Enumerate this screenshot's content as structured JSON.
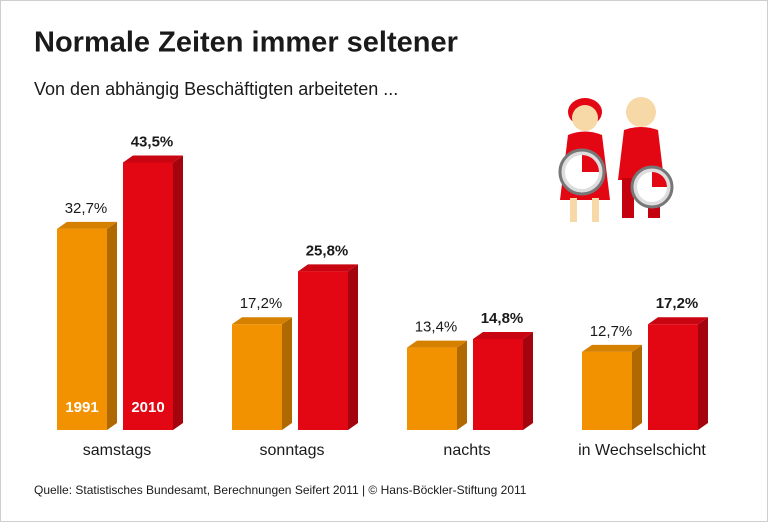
{
  "chart_data": {
    "type": "bar",
    "title": "Normale Zeiten immer seltener",
    "subtitle": "Von den abhängig Beschäftigten arbeiteten ...",
    "source": "Quelle: Statistisches Bundesamt, Berechnungen Seifert 2011 | © Hans-Böckler-Stiftung 2011",
    "categories": [
      "samstags",
      "sonntags",
      "nachts",
      "in Wechselschicht"
    ],
    "series": [
      {
        "name": "1991",
        "color": "#f39200",
        "values": [
          32.7,
          17.2,
          13.4,
          12.7
        ],
        "value_labels": [
          "32,7%",
          "17,2%",
          "13,4%",
          "12,7%"
        ]
      },
      {
        "name": "2010",
        "color": "#e30613",
        "values": [
          43.5,
          25.8,
          14.8,
          17.2
        ],
        "value_labels": [
          "43,5%",
          "25,8%",
          "14,8%",
          "17,2%"
        ]
      }
    ]
  }
}
